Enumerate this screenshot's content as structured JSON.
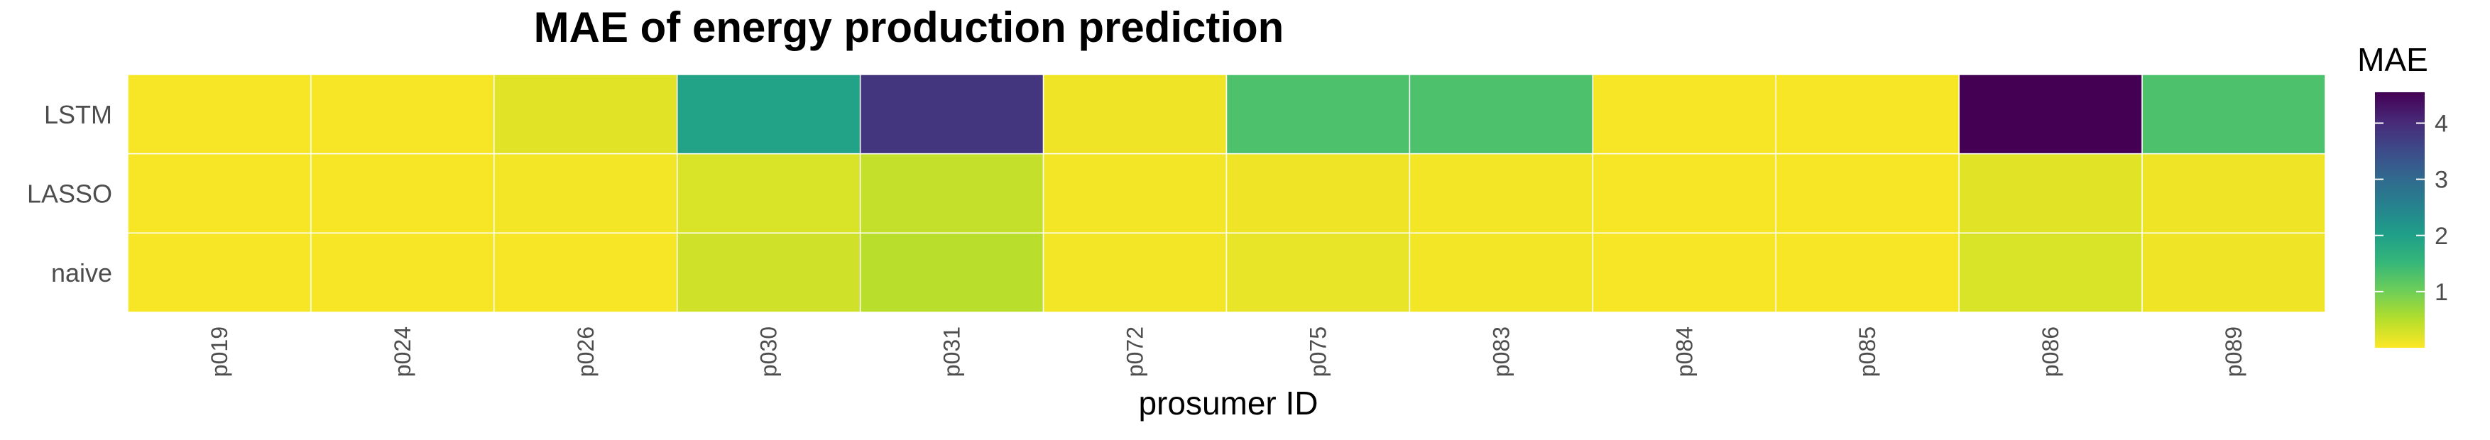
{
  "chart_data": {
    "type": "heatmap",
    "title": "MAE of energy production prediction",
    "xlabel": "prosumer ID",
    "ylabel": "",
    "x_categories": [
      "p019",
      "p024",
      "p026",
      "p030",
      "p031",
      "p072",
      "p075",
      "p083",
      "p084",
      "p085",
      "p086",
      "p089"
    ],
    "y_categories": [
      "LSTM",
      "LASSO",
      "naive"
    ],
    "values": [
      [
        0.05,
        0.05,
        0.2,
        1.95,
        3.85,
        0.1,
        1.3,
        1.3,
        0.05,
        0.05,
        4.55,
        1.3
      ],
      [
        0.05,
        0.05,
        0.08,
        0.25,
        0.4,
        0.08,
        0.1,
        0.08,
        0.05,
        0.05,
        0.2,
        0.1
      ],
      [
        0.05,
        0.05,
        0.05,
        0.32,
        0.48,
        0.08,
        0.15,
        0.08,
        0.05,
        0.05,
        0.25,
        0.1
      ]
    ],
    "colorbar": {
      "title": "MAE",
      "ticks": [
        1,
        2,
        3,
        4
      ],
      "range": [
        0,
        4.55
      ],
      "colormap": "viridis"
    },
    "grid": true,
    "legend_position": "right"
  },
  "colors": {
    "viridis": [
      "#fde725",
      "#b5de2b",
      "#6ece58",
      "#35b779",
      "#1f9e89",
      "#26828e",
      "#31688e",
      "#3e4989",
      "#482878",
      "#440154"
    ],
    "grid_line": "#ffffff",
    "tick_text": "#4d4d4d"
  }
}
